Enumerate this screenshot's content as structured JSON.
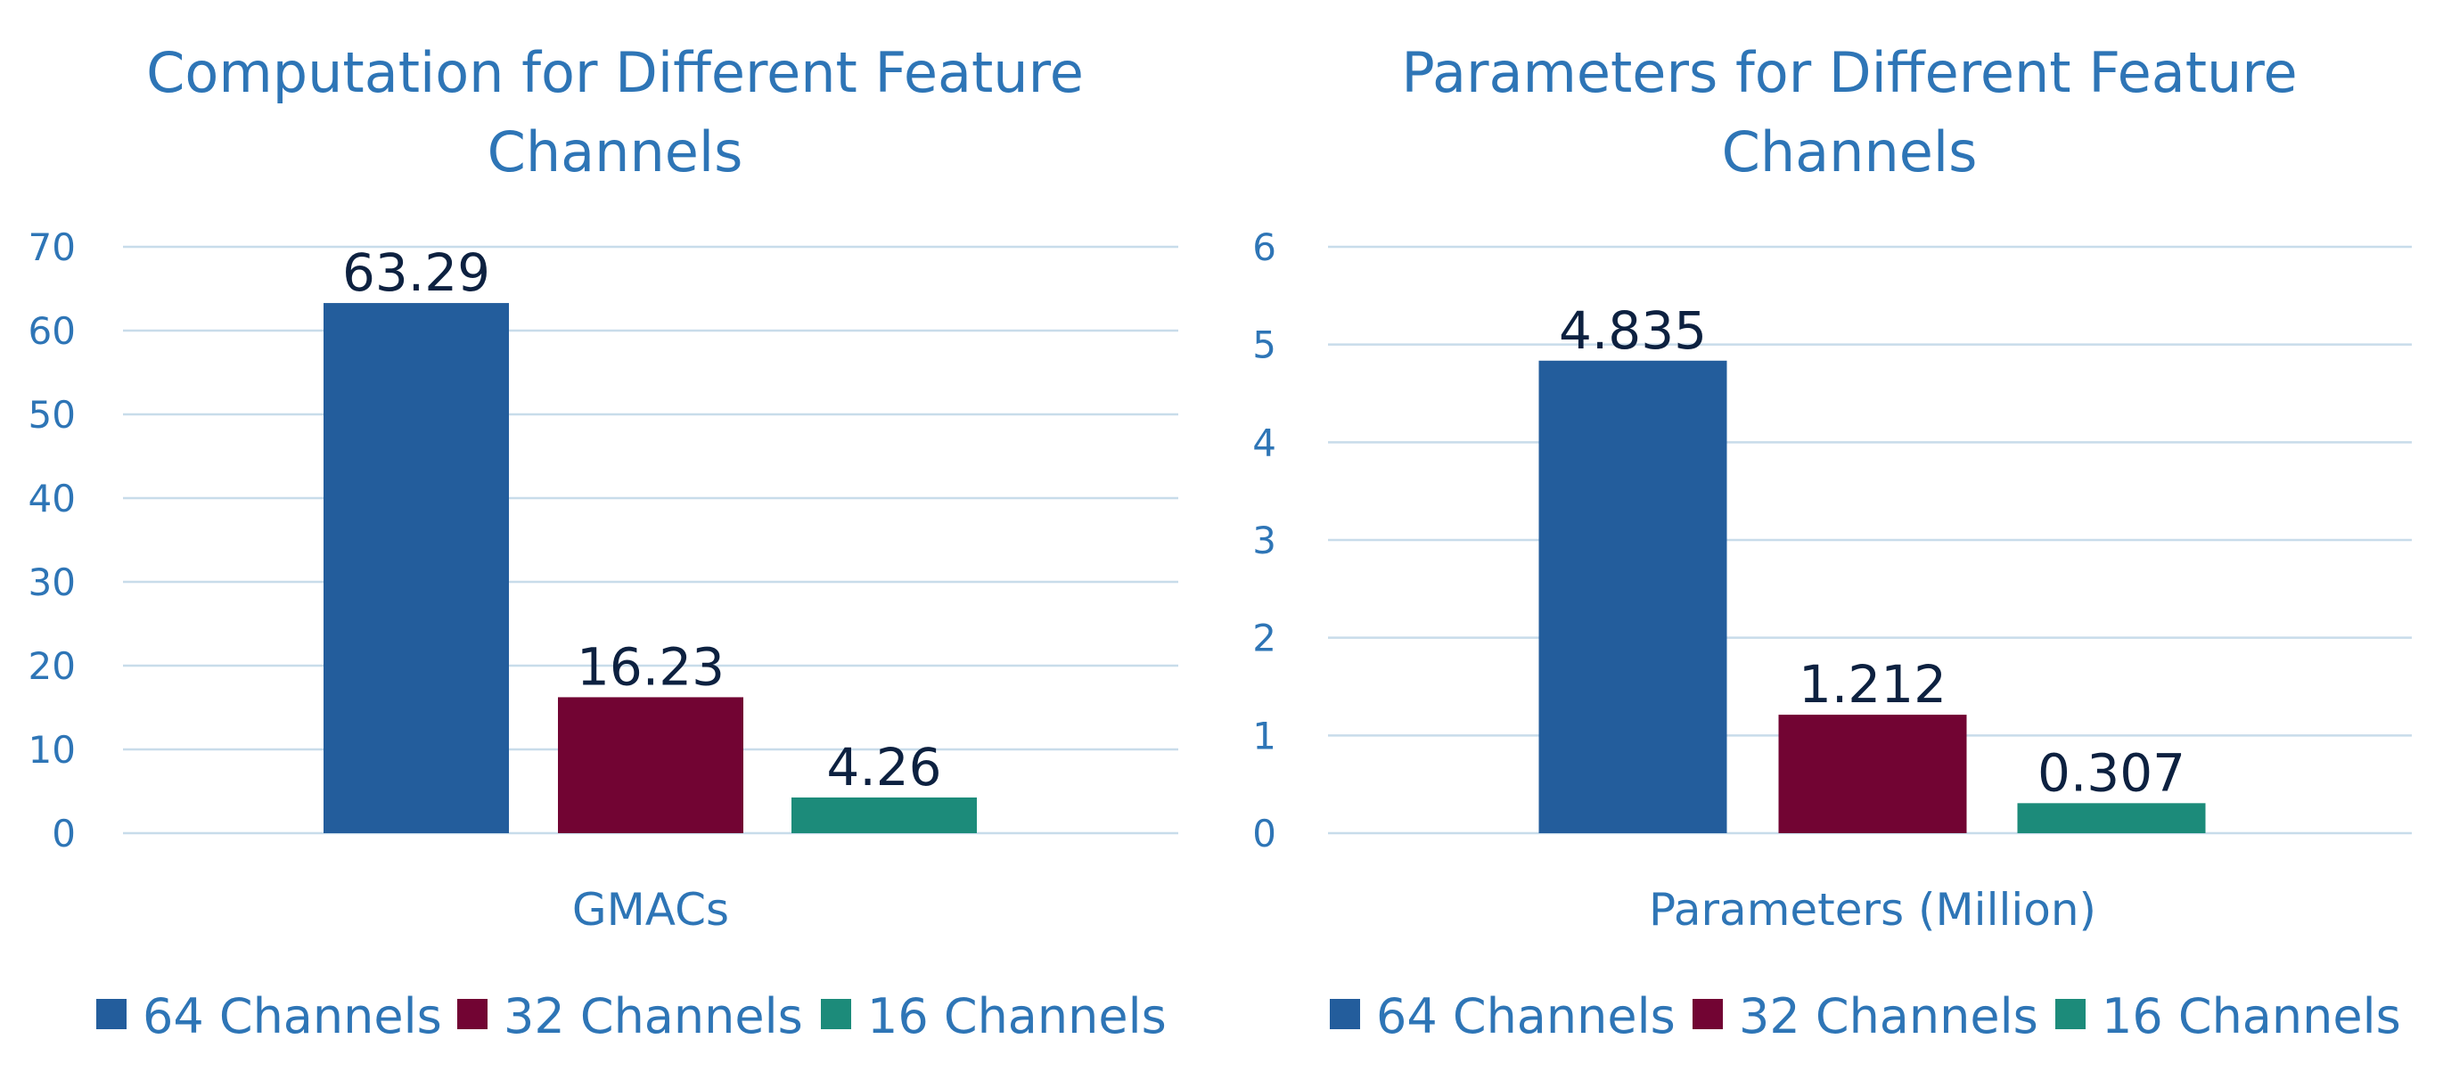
{
  "chart_data": [
    {
      "type": "bar",
      "title_lines": [
        "Computation for Different Feature",
        "Channels"
      ],
      "xlabel": "GMACs",
      "ylabel": "",
      "ylim": [
        0,
        70
      ],
      "yticks": [
        "0",
        "10",
        "20",
        "30",
        "40",
        "50",
        "60",
        "70"
      ],
      "grid": true,
      "legend": "bottom",
      "series": [
        {
          "name": "64 Channels",
          "value": 63.29,
          "label": "63.29",
          "color": "#235d9c"
        },
        {
          "name": "32 Channels",
          "value": 16.23,
          "label": "16.23",
          "color": "#720433"
        },
        {
          "name": "16 Channels",
          "value": 4.26,
          "label": "4.26",
          "color": "#1c8b7a"
        }
      ]
    },
    {
      "type": "bar",
      "title_lines": [
        "Parameters for Different Feature",
        "Channels"
      ],
      "xlabel": "Parameters (Million)",
      "ylabel": "",
      "ylim": [
        0,
        6
      ],
      "yticks": [
        "0",
        "1",
        "2",
        "3",
        "4",
        "5",
        "6"
      ],
      "grid": true,
      "legend": "bottom",
      "series": [
        {
          "name": "64 Channels",
          "value": 4.835,
          "label": "4.835",
          "color": "#235d9c"
        },
        {
          "name": "32 Channels",
          "value": 1.212,
          "label": "1.212",
          "color": "#720433"
        },
        {
          "name": "16 Channels",
          "value": 0.307,
          "label": "0.307",
          "color": "#1c8b7a"
        }
      ]
    }
  ]
}
